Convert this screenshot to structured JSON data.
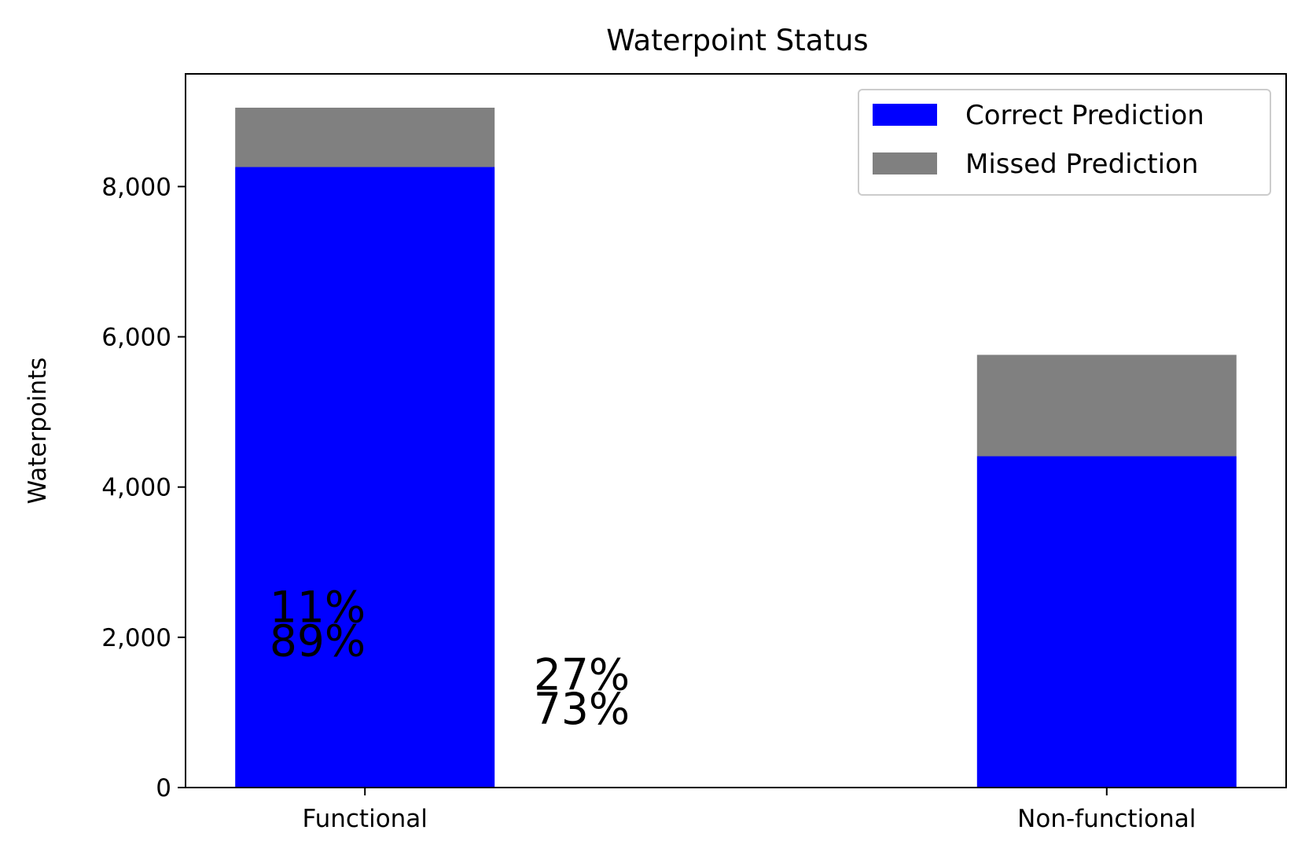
{
  "chart_data": {
    "type": "bar",
    "stacked": true,
    "title": "Waterpoint Status",
    "xlabel": "",
    "ylabel": "Waterpoints",
    "categories": [
      "Functional",
      "Non-functional"
    ],
    "series": [
      {
        "name": "Correct Prediction",
        "color": "#0000ff",
        "values": [
          8260,
          4410
        ]
      },
      {
        "name": "Missed Prediction",
        "color": "#808080",
        "values": [
          790,
          1350
        ]
      }
    ],
    "ylim": [
      0,
      9500
    ],
    "yticks": [
      0,
      2000,
      4000,
      6000,
      8000
    ],
    "ytick_labels": [
      "0",
      "2,000",
      "4,000",
      "6,000",
      "8,000"
    ],
    "grid": false,
    "legend_position": "top-right",
    "annotations": [
      {
        "text": "11%",
        "x": 0.12,
        "y": 2200
      },
      {
        "text": "89%",
        "x": 0.12,
        "y": 1750
      },
      {
        "text": "27%",
        "x": 0.36,
        "y": 1300
      },
      {
        "text": "73%",
        "x": 0.36,
        "y": 850
      }
    ]
  }
}
